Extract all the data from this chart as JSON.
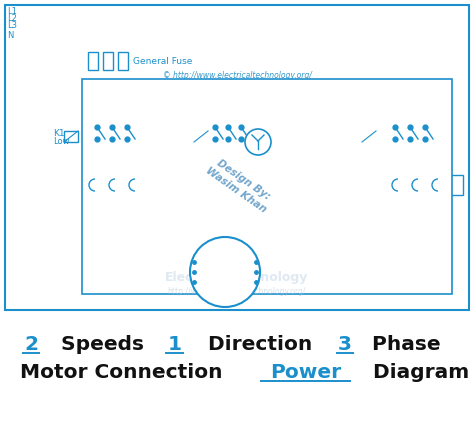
{
  "bg_color": "#ffffff",
  "dc": "#1b8fcc",
  "dc2": "#1565c0",
  "red": "#dd2222",
  "wm_color": "#c5d8e8",
  "wm2_color": "#b0c8dc",
  "title_black": "#111111",
  "title_blue": "#1b8fcc",
  "figsize": [
    4.74,
    4.33
  ],
  "dpi": 100,
  "title_line1": [
    {
      "t": "2",
      "u": true,
      "c": "#1b8fcc",
      "b": true
    },
    {
      "t": " Speeds ",
      "u": false,
      "c": "#111111",
      "b": true
    },
    {
      "t": "1",
      "u": true,
      "c": "#1b8fcc",
      "b": true
    },
    {
      "t": " Direction ",
      "u": false,
      "c": "#111111",
      "b": true
    },
    {
      "t": "3",
      "u": true,
      "c": "#1b8fcc",
      "b": true
    },
    {
      "t": " Phase",
      "u": false,
      "c": "#111111",
      "b": true
    }
  ],
  "title_line2": [
    {
      "t": "Motor Connection ",
      "u": false,
      "c": "#111111",
      "b": true
    },
    {
      "t": "Power",
      "u": true,
      "c": "#1b8fcc",
      "b": true
    },
    {
      "t": " Diagram",
      "u": false,
      "c": "#111111",
      "b": true
    }
  ]
}
